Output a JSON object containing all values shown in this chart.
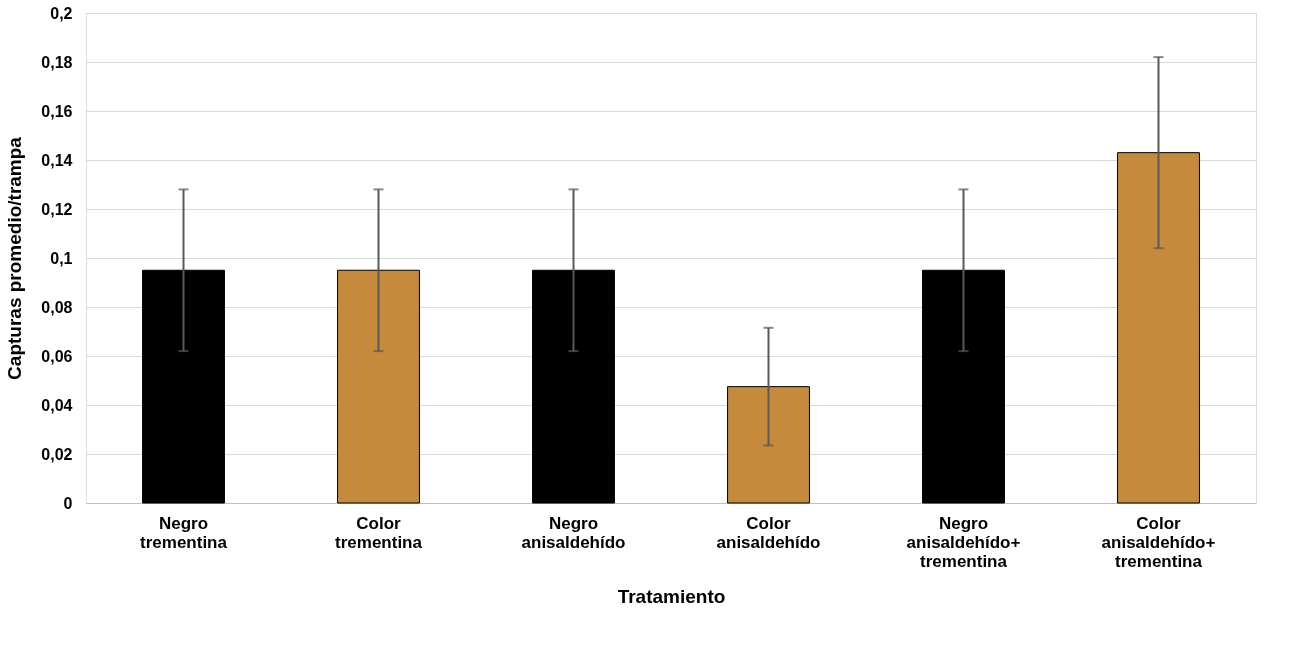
{
  "chart_data": {
    "type": "bar",
    "xlabel": "Tratamiento",
    "ylabel": "Capturas promedio/trampa",
    "categories": [
      "Negro trementina",
      "Color trementina",
      "Negro anisaldehído",
      "Color anisaldehído",
      "Negro anisaldehído+ trementina",
      "Color anisaldehído+ trementina"
    ],
    "values": [
      0.095,
      0.095,
      0.095,
      0.0475,
      0.095,
      0.143
    ],
    "errors": [
      0.033,
      0.033,
      0.033,
      0.024,
      0.033,
      0.039
    ],
    "colors": [
      "#000000",
      "#c58a3c",
      "#000000",
      "#c58a3c",
      "#000000",
      "#c58a3c"
    ],
    "ylim": [
      0,
      0.2
    ],
    "yticks": [
      0,
      {
        "value": 0.02,
        "label": "0,02"
      },
      {
        "value": 0.04,
        "label": "0,04"
      },
      {
        "value": 0.06,
        "label": "0,06"
      },
      {
        "value": 0.08,
        "label": "0,08"
      },
      {
        "value": 0.1,
        "label": "0,1"
      },
      {
        "value": 0.12,
        "label": "0,12"
      },
      {
        "value": 0.14,
        "label": "0,14"
      },
      {
        "value": 0.16,
        "label": "0,16"
      },
      {
        "value": 0.18,
        "label": "0,18"
      },
      {
        "value": 0.2,
        "label": "0,2"
      }
    ],
    "grid": "y"
  }
}
